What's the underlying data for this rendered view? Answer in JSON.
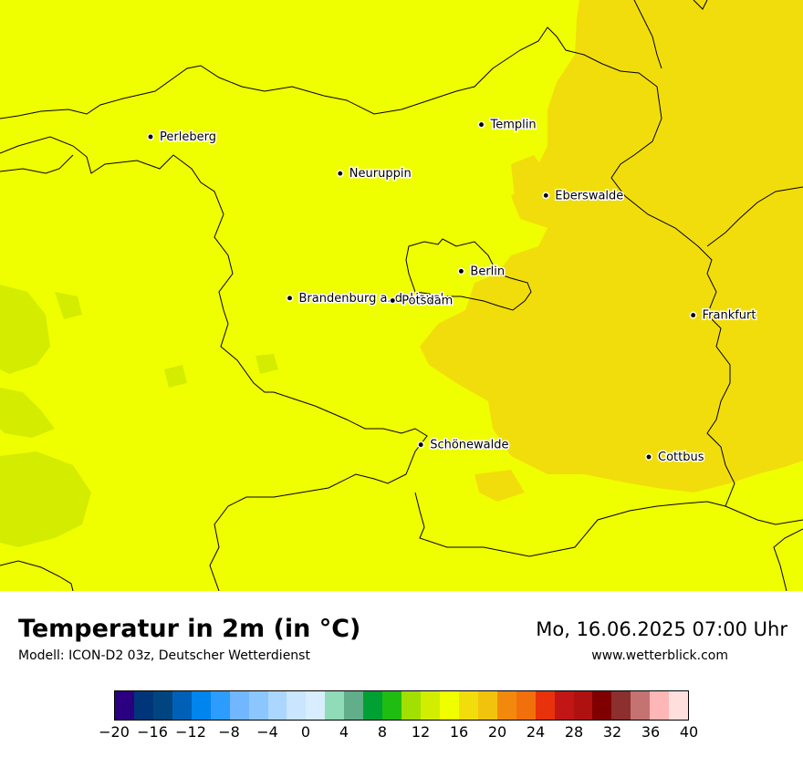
{
  "title": "Temperatur in 2m (in °C)",
  "subtitle": "Modell: ICON-D2 03z, Deutscher Wetterdienst",
  "datetime": "Mo, 16.06.2025 07:00 Uhr",
  "website": "www.wetterblick.com",
  "colors": {
    "field_main": "#f0ff00",
    "field_warm": "#f2dd0c",
    "field_cool": "#d3ec00",
    "border": "#000000"
  },
  "cities": [
    {
      "name": "Perleberg",
      "lon": 11.86,
      "lat": 53.07
    },
    {
      "name": "Templin",
      "lon": 13.5,
      "lat": 53.12
    },
    {
      "name": "Neuruppin",
      "lon": 12.8,
      "lat": 52.92
    },
    {
      "name": "Eberswalde",
      "lon": 13.82,
      "lat": 52.83
    },
    {
      "name": "Berlin",
      "lon": 13.4,
      "lat": 52.52
    },
    {
      "name": "Brandenburg a. d. Havel",
      "lon": 12.55,
      "lat": 52.41
    },
    {
      "name": "Potsdam",
      "lon": 13.06,
      "lat": 52.4
    },
    {
      "name": "Frankfurt",
      "lon": 14.55,
      "lat": 52.34
    },
    {
      "name": "Schönewalde",
      "lon": 13.2,
      "lat": 51.81
    },
    {
      "name": "Cottbus",
      "lon": 14.33,
      "lat": 51.76
    }
  ],
  "legend": {
    "colors": [
      "#2a0080",
      "#00357a",
      "#00457f",
      "#0060b8",
      "#0085ef",
      "#2c9dff",
      "#70b7ff",
      "#8cc6ff",
      "#abd6ff",
      "#c9e5ff",
      "#d8edff",
      "#90dcb8",
      "#62ae8a",
      "#01a033",
      "#1fbd12",
      "#a1e000",
      "#d2ee00",
      "#f0ff00",
      "#f2dd0c",
      "#f2c30c",
      "#f2890c",
      "#f2700c",
      "#e8320c",
      "#c21515",
      "#af1111",
      "#800000",
      "#8c2f2f",
      "#c47272",
      "#ffb6b6",
      "#ffdede"
    ],
    "ticks": [
      "−20",
      "−16",
      "−12",
      "−8",
      "−4",
      "0",
      "4",
      "8",
      "12",
      "16",
      "20",
      "24",
      "28",
      "32",
      "36",
      "40"
    ]
  }
}
